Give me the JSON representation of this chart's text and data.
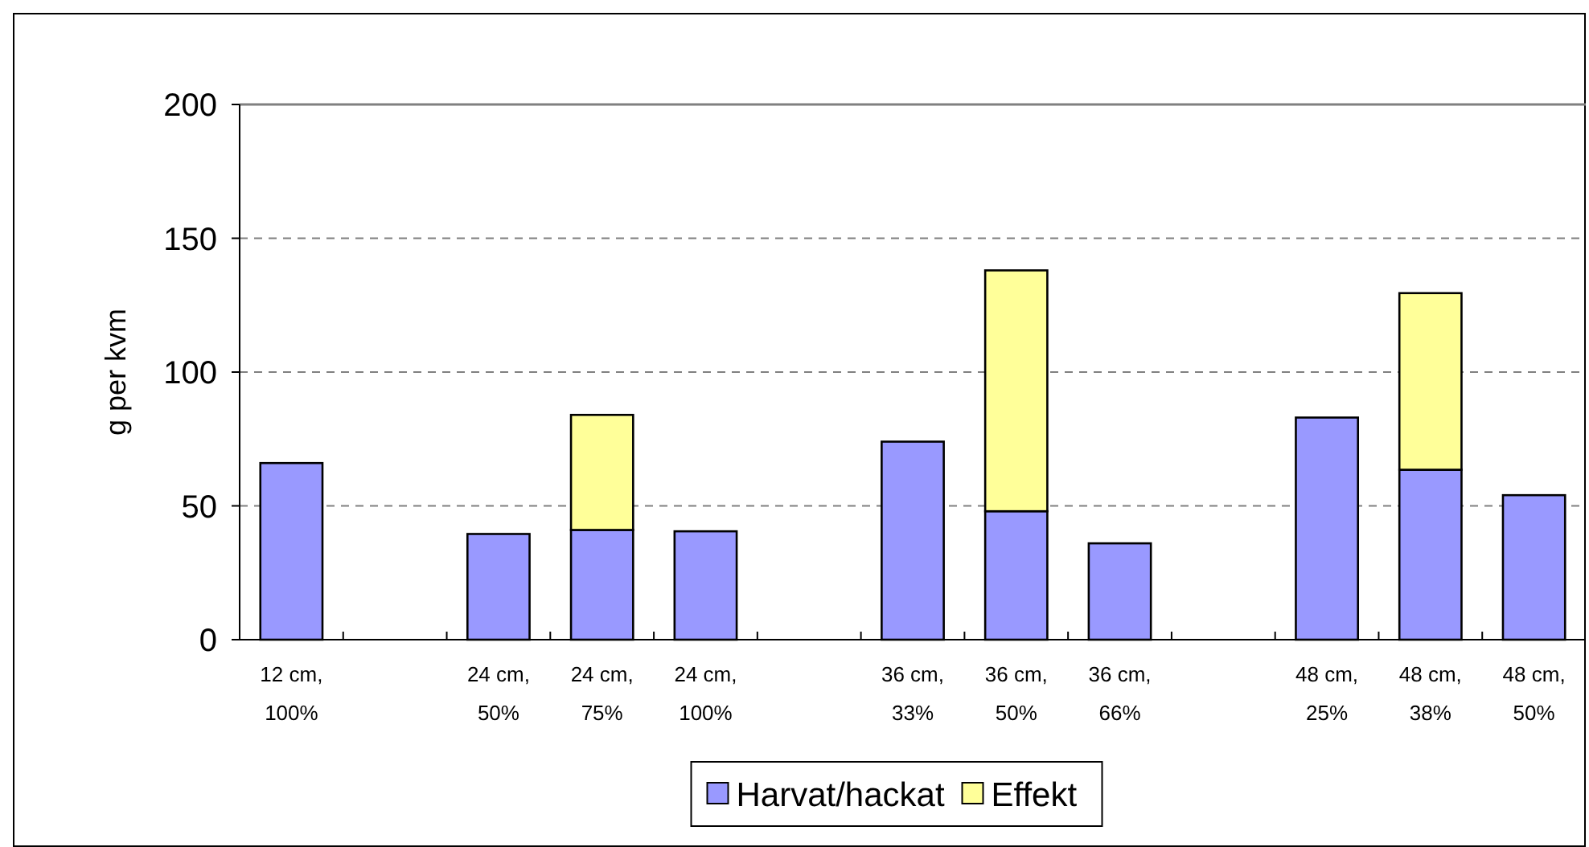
{
  "chart_data": {
    "type": "bar",
    "ylabel": "g per kvm",
    "categories": [
      "12 cm, 100%",
      null,
      "24 cm, 50%",
      "24 cm, 75%",
      "24 cm, 100%",
      null,
      "36 cm, 33%",
      "36 cm, 50%",
      "36 cm, 66%",
      null,
      "48 cm, 25%",
      "48 cm, 38%",
      "48 cm, 50%"
    ],
    "series": [
      {
        "name": "Harvat/hackat",
        "color": "#9999ff",
        "values": [
          66,
          null,
          39.5,
          41,
          40.5,
          null,
          74,
          48,
          36,
          null,
          83,
          63.5,
          54
        ]
      },
      {
        "name": "Effekt",
        "color": "#ffff99",
        "values": [
          null,
          null,
          null,
          43,
          null,
          null,
          null,
          90,
          null,
          null,
          null,
          66,
          null
        ]
      }
    ],
    "stacked": true,
    "ylim": [
      0,
      200
    ],
    "yticks": [
      0,
      50,
      100,
      150,
      200
    ],
    "grid": "y",
    "legend": "bottom"
  }
}
